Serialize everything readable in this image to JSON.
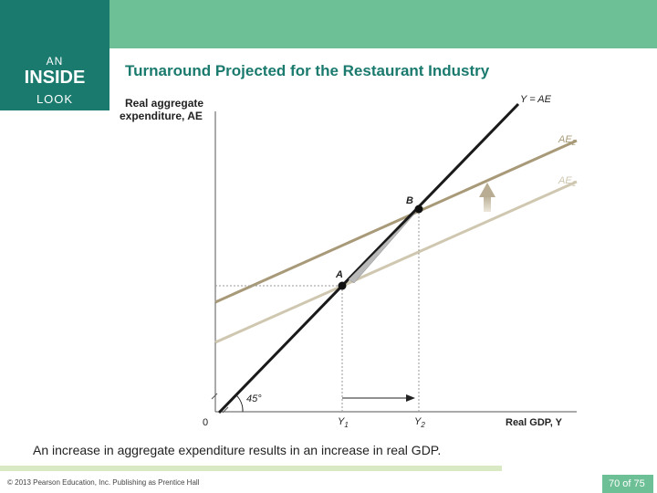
{
  "header": {
    "badge_line1": "AN",
    "badge_line2": "INSIDE",
    "badge_line3": "LOOK",
    "title": "Turnaround Projected for the Restaurant Industry"
  },
  "diagram": {
    "y_axis_label_line1": "Real aggregate",
    "y_axis_label_line2": "expenditure, AE",
    "x_axis_label": "Real GDP, Y",
    "origin_label": "0",
    "angle_label": "45°",
    "line_45": {
      "label": "Y = AE",
      "color": "#1a1a1a"
    },
    "line_ae2": {
      "label": "AE",
      "sub": "2",
      "color": "#a89a78"
    },
    "line_ae1": {
      "label": "AE",
      "sub": "1",
      "color": "#cfc7b0"
    },
    "point_a": "A",
    "point_b": "B",
    "y1": {
      "label": "Y",
      "sub": "1"
    },
    "y2": {
      "label": "Y",
      "sub": "2"
    }
  },
  "caption": "An increase in aggregate expenditure results in an increase in real GDP.",
  "footer": {
    "copyright": "© 2013 Pearson Education, Inc. Publishing as Prentice Hall",
    "page": "70 of 75"
  }
}
